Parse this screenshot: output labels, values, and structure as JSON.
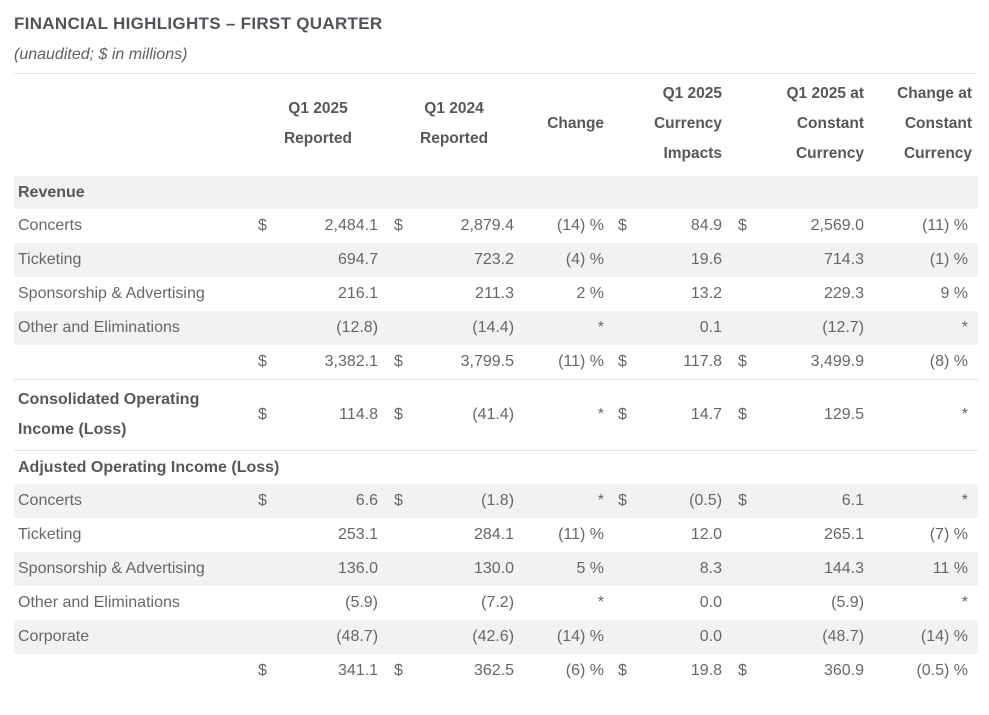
{
  "page": {
    "title": "FINANCIAL HIGHLIGHTS – FIRST QUARTER",
    "subtitle": "(unaudited; $ in millions)"
  },
  "colors": {
    "row_stripe": "#f2f2f2",
    "divider": "#e2e2e2",
    "body_text": "#65676b",
    "heading_text": "#55575b"
  },
  "table": {
    "columns": [
      {
        "name": "row-label-column",
        "lines": [],
        "align": "left",
        "span": 1
      },
      {
        "name": "q1-2025-reported-column",
        "lines": [
          "Q1 2025",
          "Reported"
        ],
        "align": "center",
        "span": 2
      },
      {
        "name": "q1-2024-reported-column",
        "lines": [
          "Q1 2024",
          "Reported"
        ],
        "align": "center",
        "span": 2
      },
      {
        "name": "change-column",
        "lines": [
          "Change"
        ],
        "align": "right",
        "span": 1
      },
      {
        "name": "q1-2025-currency-impacts-column",
        "lines": [
          "Q1 2025",
          "Currency",
          "Impacts"
        ],
        "align": "right",
        "span": 2
      },
      {
        "name": "q1-2025-constant-currency-column",
        "lines": [
          "Q1 2025 at",
          "Constant",
          "Currency"
        ],
        "align": "right",
        "span": 2
      },
      {
        "name": "change-at-constant-currency-column",
        "lines": [
          "Change at",
          "Constant",
          "Currency"
        ],
        "align": "right",
        "span": 1
      }
    ],
    "rows": [
      {
        "kind": "section",
        "label": "Revenue",
        "shaded": true,
        "cells": []
      },
      {
        "kind": "data",
        "label": "Concerts",
        "shaded": false,
        "cells": [
          "$",
          "2,484.1",
          "$",
          "2,879.4",
          "(14) %",
          "$",
          "84.9",
          "$",
          "2,569.0",
          "(11) %"
        ]
      },
      {
        "kind": "data",
        "label": "Ticketing",
        "shaded": true,
        "cells": [
          "",
          "694.7",
          "",
          "723.2",
          "(4) %",
          "",
          "19.6",
          "",
          "714.3",
          "(1) %"
        ]
      },
      {
        "kind": "data",
        "label": "Sponsorship & Advertising",
        "shaded": false,
        "cells": [
          "",
          "216.1",
          "",
          "211.3",
          "2 %",
          "",
          "13.2",
          "",
          "229.3",
          "9 %"
        ]
      },
      {
        "kind": "data",
        "label": "Other and Eliminations",
        "shaded": true,
        "cells": [
          "",
          "(12.8)",
          "",
          "(14.4)",
          "*",
          "",
          "0.1",
          "",
          "(12.7)",
          "*"
        ]
      },
      {
        "kind": "total",
        "label": "",
        "shaded": false,
        "cells": [
          "$",
          "3,382.1",
          "$",
          "3,799.5",
          "(11) %",
          "$",
          "117.8",
          "$",
          "3,499.9",
          "(8) %"
        ]
      },
      {
        "kind": "data",
        "label": "Consolidated Operating Income (Loss)",
        "shaded": false,
        "divider": true,
        "tall": true,
        "bold_label": true,
        "cells": [
          "$",
          "114.8",
          "$",
          "(41.4)",
          "*",
          "$",
          "14.7",
          "$",
          "129.5",
          "*"
        ]
      },
      {
        "kind": "section",
        "label": "Adjusted Operating Income (Loss)",
        "shaded": false,
        "divider": true,
        "cells": []
      },
      {
        "kind": "data",
        "label": "Concerts",
        "shaded": true,
        "cells": [
          "$",
          "6.6",
          "$",
          "(1.8)",
          "*",
          "$",
          "(0.5)",
          "$",
          "6.1",
          "*"
        ]
      },
      {
        "kind": "data",
        "label": "Ticketing",
        "shaded": false,
        "cells": [
          "",
          "253.1",
          "",
          "284.1",
          "(11) %",
          "",
          "12.0",
          "",
          "265.1",
          "(7) %"
        ]
      },
      {
        "kind": "data",
        "label": "Sponsorship & Advertising",
        "shaded": true,
        "cells": [
          "",
          "136.0",
          "",
          "130.0",
          "5 %",
          "",
          "8.3",
          "",
          "144.3",
          "11 %"
        ]
      },
      {
        "kind": "data",
        "label": "Other and Eliminations",
        "shaded": false,
        "cells": [
          "",
          "(5.9)",
          "",
          "(7.2)",
          "*",
          "",
          "0.0",
          "",
          "(5.9)",
          "*"
        ]
      },
      {
        "kind": "data",
        "label": "Corporate",
        "shaded": true,
        "cells": [
          "",
          "(48.7)",
          "",
          "(42.6)",
          "(14) %",
          "",
          "0.0",
          "",
          "(48.7)",
          "(14) %"
        ]
      },
      {
        "kind": "total",
        "label": "",
        "shaded": false,
        "cells": [
          "$",
          "341.1",
          "$",
          "362.5",
          "(6) %",
          "$",
          "19.8",
          "$",
          "360.9",
          "(0.5) %"
        ]
      }
    ]
  }
}
